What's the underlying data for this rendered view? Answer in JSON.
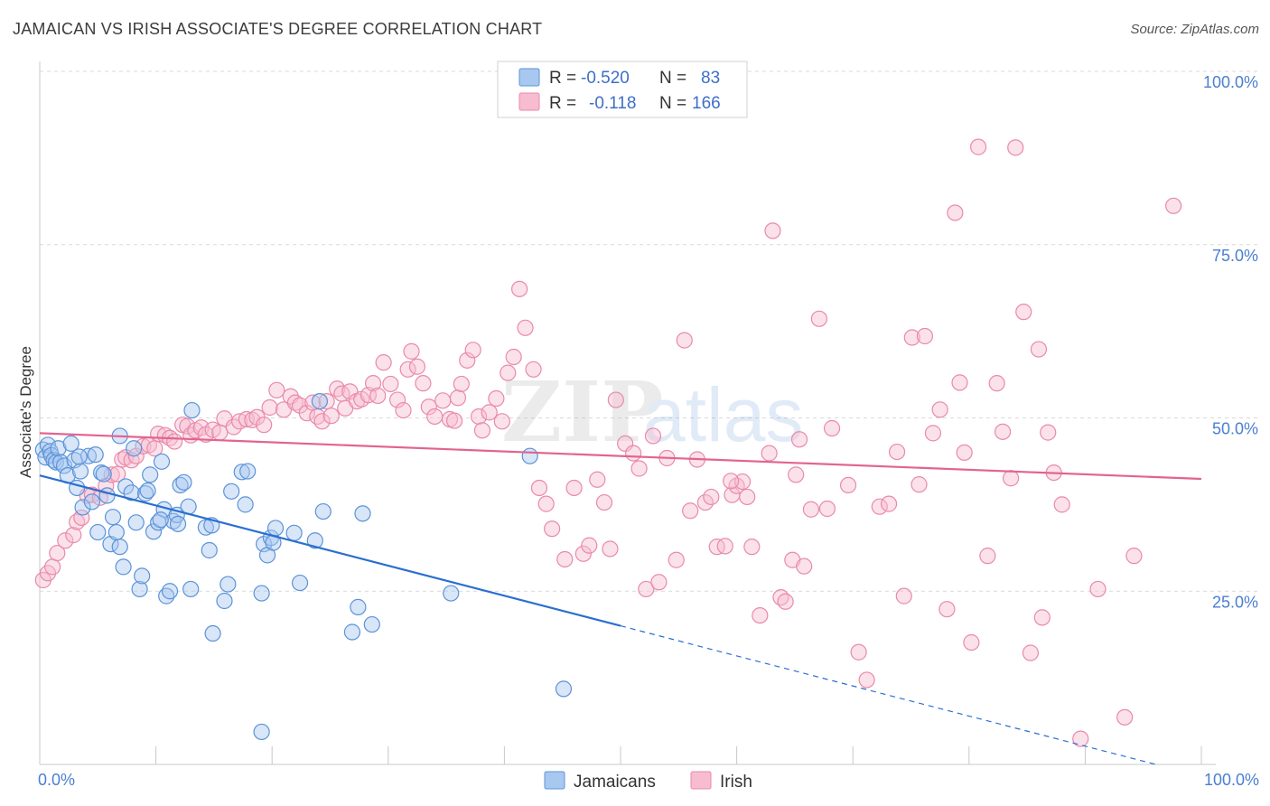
{
  "title": "JAMAICAN VS IRISH ASSOCIATE'S DEGREE CORRELATION CHART",
  "source": "Source: ZipAtlas.com",
  "colors": {
    "jamaicans_fill": "#a9c8f0",
    "jamaicans_stroke": "#5b93d9",
    "jamaicans_line": "#2a6fd0",
    "irish_fill": "#f7bcd0",
    "irish_stroke": "#e98aa9",
    "irish_line": "#e2648f",
    "tick_label": "#4a7fd0",
    "grid": "#d9d9d9"
  },
  "legend": {
    "rows": [
      {
        "r_label": "R =",
        "r_value": "-0.520",
        "n_label": "N =",
        "n_value": "83"
      },
      {
        "r_label": "R =",
        "r_value": "-0.118",
        "n_label": "N =",
        "n_value": "166"
      }
    ]
  },
  "bottom_legend": [
    "Jamaicans",
    "Irish"
  ],
  "chart_data": {
    "type": "scatter",
    "title": "JAMAICAN VS IRISH ASSOCIATE'S DEGREE CORRELATION CHART",
    "xlabel": "",
    "ylabel": "Associate's Degree",
    "xlim": [
      0,
      100
    ],
    "ylim": [
      0,
      102
    ],
    "x_tick_labels": [
      "0.0%",
      "100.0%"
    ],
    "y_ticks": [
      25,
      50,
      75,
      100
    ],
    "y_tick_labels": [
      "25.0%",
      "50.0%",
      "75.0%",
      "100.0%"
    ],
    "grid": true,
    "legend_position": "top-center",
    "series": [
      {
        "name": "Jamaicans",
        "r": -0.52,
        "n": 83,
        "trend": {
          "x0": 0,
          "y0": 41.7,
          "x1": 100,
          "y1": -1.7,
          "solid_until_x": 50
        },
        "points": [
          [
            0.3,
            45.4
          ],
          [
            0.5,
            44.3
          ],
          [
            0.7,
            46.1
          ],
          [
            0.9,
            45.2
          ],
          [
            1.0,
            44.6
          ],
          [
            1.2,
            43.9
          ],
          [
            1.4,
            43.6
          ],
          [
            1.6,
            45.6
          ],
          [
            1.8,
            43.6
          ],
          [
            2.1,
            43.1
          ],
          [
            2.4,
            41.7
          ],
          [
            2.7,
            46.3
          ],
          [
            3.0,
            43.9
          ],
          [
            3.2,
            39.9
          ],
          [
            3.5,
            42.3
          ],
          [
            3.7,
            37.1
          ],
          [
            4.2,
            44.5
          ],
          [
            4.5,
            37.9
          ],
          [
            4.8,
            44.7
          ],
          [
            5.0,
            33.5
          ],
          [
            5.3,
            42.1
          ],
          [
            5.5,
            41.9
          ],
          [
            5.8,
            38.8
          ],
          [
            6.1,
            31.8
          ],
          [
            6.3,
            35.7
          ],
          [
            6.6,
            33.5
          ],
          [
            6.9,
            31.4
          ],
          [
            7.2,
            28.5
          ],
          [
            7.4,
            40.1
          ],
          [
            7.9,
            39.2
          ],
          [
            8.1,
            45.6
          ],
          [
            8.3,
            34.9
          ],
          [
            8.6,
            25.3
          ],
          [
            8.8,
            27.2
          ],
          [
            9.1,
            39.1
          ],
          [
            9.3,
            39.5
          ],
          [
            9.5,
            41.8
          ],
          [
            9.8,
            33.6
          ],
          [
            10.2,
            34.9
          ],
          [
            10.5,
            43.7
          ],
          [
            10.7,
            36.8
          ],
          [
            10.9,
            24.3
          ],
          [
            11.2,
            25.0
          ],
          [
            11.5,
            35.1
          ],
          [
            11.8,
            36.0
          ],
          [
            11.9,
            34.7
          ],
          [
            12.1,
            40.3
          ],
          [
            12.4,
            40.7
          ],
          [
            12.8,
            37.2
          ],
          [
            13.0,
            25.3
          ],
          [
            13.1,
            51.1
          ],
          [
            14.3,
            34.2
          ],
          [
            14.6,
            30.9
          ],
          [
            14.8,
            34.5
          ],
          [
            14.9,
            18.9
          ],
          [
            15.9,
            23.6
          ],
          [
            16.2,
            26.0
          ],
          [
            16.5,
            39.4
          ],
          [
            17.4,
            42.2
          ],
          [
            17.7,
            37.5
          ],
          [
            17.9,
            42.3
          ],
          [
            19.1,
            24.7
          ],
          [
            19.3,
            31.8
          ],
          [
            19.6,
            30.2
          ],
          [
            19.9,
            32.7
          ],
          [
            20.1,
            32.0
          ],
          [
            20.3,
            34.1
          ],
          [
            21.9,
            33.4
          ],
          [
            22.4,
            26.2
          ],
          [
            23.7,
            32.3
          ],
          [
            24.1,
            52.4
          ],
          [
            24.4,
            36.5
          ],
          [
            26.9,
            19.1
          ],
          [
            27.4,
            22.7
          ],
          [
            27.8,
            36.2
          ],
          [
            28.6,
            20.2
          ],
          [
            35.4,
            24.7
          ],
          [
            42.2,
            44.5
          ],
          [
            45.1,
            10.9
          ],
          [
            19.1,
            4.7
          ],
          [
            10.4,
            35.3
          ],
          [
            6.9,
            47.4
          ],
          [
            3.4,
            44.4
          ]
        ]
      },
      {
        "name": "Irish",
        "r": -0.118,
        "n": 166,
        "trend": {
          "x0": 0,
          "y0": 47.8,
          "x1": 100,
          "y1": 41.2
        },
        "points": [
          [
            0.3,
            26.6
          ],
          [
            0.7,
            27.6
          ],
          [
            1.1,
            28.5
          ],
          [
            1.5,
            30.5
          ],
          [
            2.2,
            32.3
          ],
          [
            2.9,
            33.1
          ],
          [
            3.2,
            35.0
          ],
          [
            3.6,
            35.6
          ],
          [
            4.1,
            38.8
          ],
          [
            4.5,
            38.9
          ],
          [
            5.2,
            38.5
          ],
          [
            5.7,
            40.2
          ],
          [
            6.2,
            41.8
          ],
          [
            6.7,
            41.9
          ],
          [
            7.1,
            44.0
          ],
          [
            7.4,
            44.3
          ],
          [
            7.9,
            43.9
          ],
          [
            8.3,
            44.5
          ],
          [
            8.9,
            45.9
          ],
          [
            9.4,
            46.1
          ],
          [
            9.9,
            45.6
          ],
          [
            10.2,
            47.7
          ],
          [
            10.8,
            47.5
          ],
          [
            11.2,
            47.1
          ],
          [
            11.6,
            46.6
          ],
          [
            12.3,
            49.0
          ],
          [
            12.7,
            48.8
          ],
          [
            13.0,
            47.5
          ],
          [
            13.4,
            48.2
          ],
          [
            13.9,
            48.6
          ],
          [
            14.3,
            47.6
          ],
          [
            14.9,
            48.3
          ],
          [
            15.5,
            47.9
          ],
          [
            15.9,
            49.9
          ],
          [
            16.7,
            48.7
          ],
          [
            17.2,
            49.5
          ],
          [
            17.8,
            49.8
          ],
          [
            18.3,
            49.7
          ],
          [
            18.7,
            50.1
          ],
          [
            19.3,
            49.0
          ],
          [
            19.8,
            51.5
          ],
          [
            20.4,
            54.0
          ],
          [
            21.0,
            51.2
          ],
          [
            21.6,
            53.1
          ],
          [
            22.0,
            52.2
          ],
          [
            22.4,
            51.8
          ],
          [
            23.0,
            50.7
          ],
          [
            23.5,
            52.2
          ],
          [
            23.9,
            50.2
          ],
          [
            24.3,
            49.5
          ],
          [
            24.7,
            52.4
          ],
          [
            25.1,
            50.3
          ],
          [
            25.6,
            54.2
          ],
          [
            26.0,
            53.5
          ],
          [
            26.3,
            51.4
          ],
          [
            26.7,
            53.8
          ],
          [
            27.3,
            52.4
          ],
          [
            27.7,
            52.7
          ],
          [
            28.3,
            53.3
          ],
          [
            28.7,
            55.0
          ],
          [
            29.1,
            53.2
          ],
          [
            29.6,
            58.0
          ],
          [
            30.2,
            54.9
          ],
          [
            30.8,
            52.6
          ],
          [
            31.3,
            51.1
          ],
          [
            31.7,
            57.0
          ],
          [
            32.0,
            59.6
          ],
          [
            32.5,
            57.4
          ],
          [
            33.0,
            55.0
          ],
          [
            33.5,
            51.6
          ],
          [
            34.0,
            50.2
          ],
          [
            34.7,
            52.5
          ],
          [
            35.3,
            49.8
          ],
          [
            35.7,
            49.6
          ],
          [
            36.0,
            52.9
          ],
          [
            36.3,
            54.9
          ],
          [
            36.8,
            58.3
          ],
          [
            37.3,
            59.8
          ],
          [
            37.8,
            50.2
          ],
          [
            38.1,
            48.2
          ],
          [
            38.7,
            50.8
          ],
          [
            39.3,
            52.8
          ],
          [
            39.8,
            49.5
          ],
          [
            40.3,
            56.5
          ],
          [
            40.8,
            58.8
          ],
          [
            41.3,
            68.6
          ],
          [
            41.8,
            63.0
          ],
          [
            42.5,
            57.0
          ],
          [
            43.0,
            39.9
          ],
          [
            43.6,
            37.6
          ],
          [
            44.1,
            34.0
          ],
          [
            45.2,
            29.6
          ],
          [
            46.0,
            39.9
          ],
          [
            46.8,
            30.4
          ],
          [
            47.3,
            31.6
          ],
          [
            48.0,
            41.1
          ],
          [
            48.6,
            37.8
          ],
          [
            49.1,
            31.1
          ],
          [
            49.6,
            52.6
          ],
          [
            50.4,
            46.3
          ],
          [
            51.1,
            44.9
          ],
          [
            51.6,
            42.7
          ],
          [
            52.2,
            25.3
          ],
          [
            52.8,
            47.4
          ],
          [
            53.3,
            26.3
          ],
          [
            54.0,
            44.2
          ],
          [
            54.8,
            29.5
          ],
          [
            55.5,
            61.2
          ],
          [
            56.0,
            36.6
          ],
          [
            56.6,
            44.0
          ],
          [
            57.3,
            37.8
          ],
          [
            57.8,
            38.6
          ],
          [
            58.3,
            31.4
          ],
          [
            59.0,
            31.5
          ],
          [
            59.6,
            38.9
          ],
          [
            60.0,
            40.2
          ],
          [
            60.5,
            40.8
          ],
          [
            60.9,
            38.6
          ],
          [
            61.3,
            31.4
          ],
          [
            62.0,
            21.5
          ],
          [
            62.8,
            44.9
          ],
          [
            63.1,
            77.0
          ],
          [
            63.8,
            24.1
          ],
          [
            64.2,
            23.5
          ],
          [
            64.8,
            29.5
          ],
          [
            65.1,
            41.8
          ],
          [
            65.4,
            46.9
          ],
          [
            65.8,
            28.6
          ],
          [
            66.4,
            36.8
          ],
          [
            67.1,
            64.3
          ],
          [
            67.8,
            36.9
          ],
          [
            68.2,
            48.5
          ],
          [
            69.6,
            40.3
          ],
          [
            70.5,
            16.2
          ],
          [
            71.2,
            12.2
          ],
          [
            72.3,
            37.2
          ],
          [
            73.1,
            37.6
          ],
          [
            73.8,
            45.1
          ],
          [
            74.4,
            24.3
          ],
          [
            75.1,
            61.6
          ],
          [
            75.7,
            40.4
          ],
          [
            76.2,
            61.8
          ],
          [
            76.9,
            47.8
          ],
          [
            77.5,
            51.2
          ],
          [
            78.1,
            22.4
          ],
          [
            78.8,
            79.6
          ],
          [
            79.2,
            55.1
          ],
          [
            79.6,
            45.0
          ],
          [
            80.2,
            17.6
          ],
          [
            80.8,
            89.1
          ],
          [
            81.6,
            30.1
          ],
          [
            82.4,
            55.0
          ],
          [
            82.9,
            48.0
          ],
          [
            83.6,
            41.3
          ],
          [
            84.0,
            89.0
          ],
          [
            84.7,
            65.3
          ],
          [
            85.3,
            16.1
          ],
          [
            86.0,
            59.9
          ],
          [
            86.3,
            21.2
          ],
          [
            86.8,
            47.9
          ],
          [
            87.3,
            42.1
          ],
          [
            88.0,
            37.5
          ],
          [
            89.6,
            3.7
          ],
          [
            91.1,
            25.3
          ],
          [
            93.4,
            6.8
          ],
          [
            94.2,
            30.1
          ],
          [
            97.6,
            80.6
          ],
          [
            59.5,
            40.9
          ]
        ]
      }
    ]
  }
}
